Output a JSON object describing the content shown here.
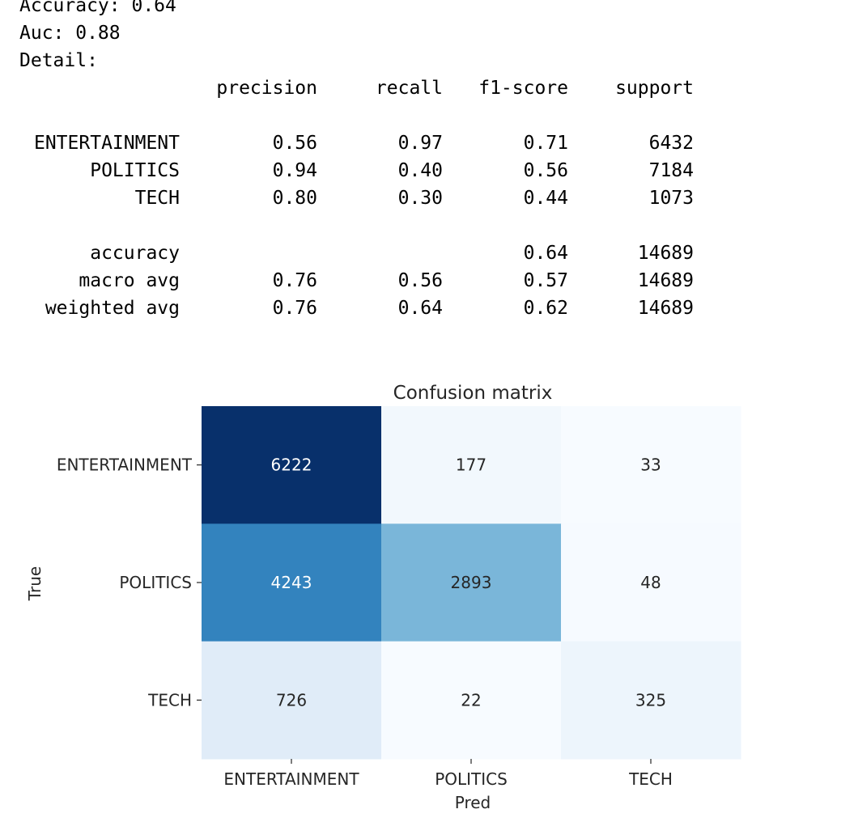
{
  "output": {
    "accuracy_line": "Accuracy: 0.64",
    "auc_line": "Auc: 0.88",
    "detail_line": "Detail:"
  },
  "report": {
    "headers": [
      "precision",
      "recall",
      "f1-score",
      "support"
    ],
    "class_rows": [
      {
        "label": "ENTERTAINMENT",
        "precision": "0.56",
        "recall": "0.97",
        "f1": "0.71",
        "support": "6432"
      },
      {
        "label": "POLITICS",
        "precision": "0.94",
        "recall": "0.40",
        "f1": "0.56",
        "support": "7184"
      },
      {
        "label": "TECH",
        "precision": "0.80",
        "recall": "0.30",
        "f1": "0.44",
        "support": "1073"
      }
    ],
    "accuracy_row": {
      "label": "accuracy",
      "f1": "0.64",
      "support": "14689"
    },
    "avg_rows": [
      {
        "label": "macro avg",
        "precision": "0.76",
        "recall": "0.56",
        "f1": "0.57",
        "support": "14689"
      },
      {
        "label": "weighted avg",
        "precision": "0.76",
        "recall": "0.64",
        "f1": "0.62",
        "support": "14689"
      }
    ]
  },
  "chart_data": {
    "type": "heatmap",
    "title": "Confusion matrix",
    "xlabel": "Pred",
    "ylabel": "True",
    "x_categories": [
      "ENTERTAINMENT",
      "POLITICS",
      "TECH"
    ],
    "y_categories": [
      "ENTERTAINMENT",
      "POLITICS",
      "TECH"
    ],
    "values": [
      [
        6222,
        177,
        33
      ],
      [
        4243,
        2893,
        48
      ],
      [
        726,
        22,
        325
      ]
    ],
    "colormap": "Blues",
    "color_range": [
      22,
      6222
    ],
    "colorbar": false,
    "colors": {
      "low": "#f7fbff",
      "high": "#08306b"
    }
  }
}
